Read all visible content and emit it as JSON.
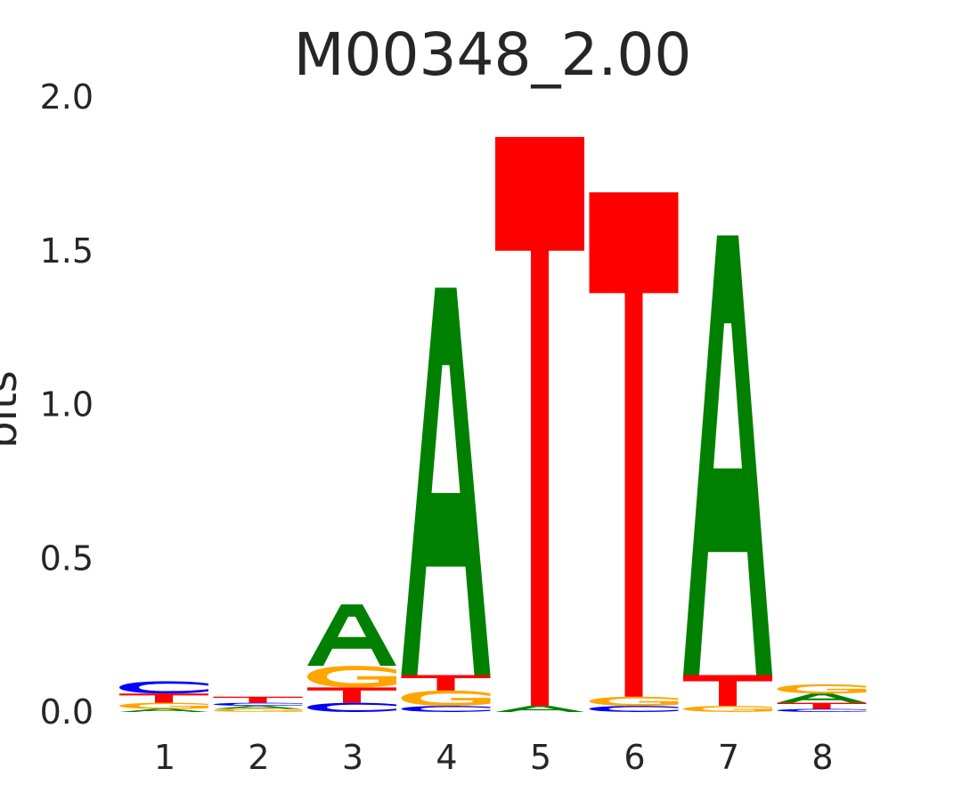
{
  "chart_data": {
    "type": "sequence-logo",
    "title": "M00348_2.00",
    "ylabel": "bits",
    "xlabel": "",
    "ylim": [
      0,
      2.0
    ],
    "yticks": [
      "0.0",
      "0.5",
      "1.0",
      "1.5",
      "2.0"
    ],
    "positions": [
      "1",
      "2",
      "3",
      "4",
      "5",
      "6",
      "7",
      "8"
    ],
    "grid": false,
    "legend": "none",
    "colors": {
      "A": "#008000",
      "C": "#0000ff",
      "G": "#ffa500",
      "T": "#ff0000"
    },
    "stacks": [
      [
        {
          "letter": "A",
          "bits": 0.01
        },
        {
          "letter": "G",
          "bits": 0.02
        },
        {
          "letter": "T",
          "bits": 0.03
        },
        {
          "letter": "C",
          "bits": 0.04
        }
      ],
      [
        {
          "letter": "G",
          "bits": 0.01
        },
        {
          "letter": "A",
          "bits": 0.01
        },
        {
          "letter": "C",
          "bits": 0.01
        },
        {
          "letter": "T",
          "bits": 0.02
        }
      ],
      [
        {
          "letter": "C",
          "bits": 0.03
        },
        {
          "letter": "T",
          "bits": 0.05
        },
        {
          "letter": "G",
          "bits": 0.07
        },
        {
          "letter": "A",
          "bits": 0.2
        }
      ],
      [
        {
          "letter": "C",
          "bits": 0.02
        },
        {
          "letter": "G",
          "bits": 0.05
        },
        {
          "letter": "T",
          "bits": 0.05
        },
        {
          "letter": "A",
          "bits": 1.26
        }
      ],
      [
        {
          "letter": "A",
          "bits": 0.02
        },
        {
          "letter": "T",
          "bits": 1.85
        }
      ],
      [
        {
          "letter": "C",
          "bits": 0.02
        },
        {
          "letter": "G",
          "bits": 0.03
        },
        {
          "letter": "T",
          "bits": 1.64
        }
      ],
      [
        {
          "letter": "G",
          "bits": 0.02
        },
        {
          "letter": "T",
          "bits": 0.1
        },
        {
          "letter": "A",
          "bits": 1.43
        }
      ],
      [
        {
          "letter": "C",
          "bits": 0.01
        },
        {
          "letter": "T",
          "bits": 0.02
        },
        {
          "letter": "A",
          "bits": 0.03
        },
        {
          "letter": "G",
          "bits": 0.03
        }
      ]
    ]
  }
}
